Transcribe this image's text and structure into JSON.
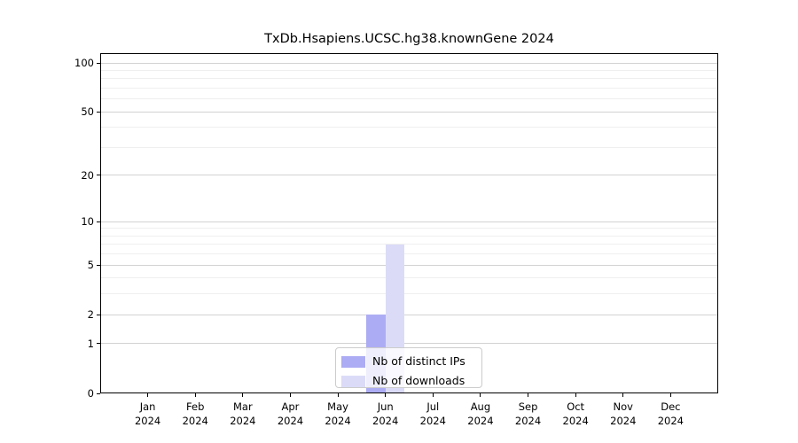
{
  "figure": {
    "background": "#ffffff"
  },
  "chart_data": {
    "type": "bar",
    "title": "TxDb.Hsapiens.UCSC.hg38.knownGene 2024",
    "x_year": "2024",
    "categories": [
      "Jan",
      "Feb",
      "Mar",
      "Apr",
      "May",
      "Jun",
      "Jul",
      "Aug",
      "Sep",
      "Oct",
      "Nov",
      "Dec"
    ],
    "series": [
      {
        "name": "Nb of distinct IPs",
        "color": "#acacf4",
        "values": [
          0,
          0,
          0,
          0,
          0,
          2,
          0,
          0,
          0,
          0,
          0,
          0
        ]
      },
      {
        "name": "Nb of downloads",
        "color": "#dbdbf8",
        "values": [
          0,
          0,
          0,
          0,
          0,
          7,
          0,
          0,
          0,
          0,
          0,
          0
        ]
      }
    ],
    "y_axis": {
      "scale": "log1p",
      "ticks": [
        0,
        1,
        2,
        5,
        10,
        20,
        50,
        100
      ],
      "minor_gridlines": [
        3,
        4,
        6,
        7,
        8,
        9,
        30,
        40,
        60,
        70,
        80,
        90
      ],
      "max_tick": 100
    },
    "legend": {
      "position": "lower center"
    },
    "grid": "horizontal"
  },
  "colors": {
    "axis": "#000000",
    "major_grid": "#d2d2d2",
    "minor_grid": "#efefef",
    "text": "#000000",
    "legend_border": "#cccccc"
  }
}
